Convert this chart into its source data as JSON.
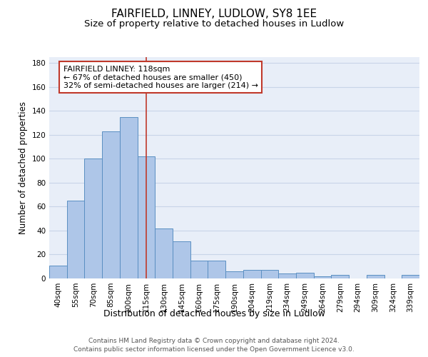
{
  "title": "FAIRFIELD, LINNEY, LUDLOW, SY8 1EE",
  "subtitle": "Size of property relative to detached houses in Ludlow",
  "xlabel": "Distribution of detached houses by size in Ludlow",
  "ylabel": "Number of detached properties",
  "categories": [
    "40sqm",
    "55sqm",
    "70sqm",
    "85sqm",
    "100sqm",
    "115sqm",
    "130sqm",
    "145sqm",
    "160sqm",
    "175sqm",
    "190sqm",
    "204sqm",
    "219sqm",
    "234sqm",
    "249sqm",
    "264sqm",
    "279sqm",
    "294sqm",
    "309sqm",
    "324sqm",
    "339sqm"
  ],
  "values": [
    11,
    65,
    100,
    123,
    135,
    102,
    42,
    31,
    15,
    15,
    6,
    7,
    7,
    4,
    5,
    2,
    3,
    0,
    3,
    0,
    3
  ],
  "bar_color": "#aec6e8",
  "bar_edge_color": "#5a8fc2",
  "vline_x_index": 5,
  "vline_color": "#c0392b",
  "annotation_line1": "FAIRFIELD LINNEY: 118sqm",
  "annotation_line2": "← 67% of detached houses are smaller (450)",
  "annotation_line3": "32% of semi-detached houses are larger (214) →",
  "annotation_box_color": "#c0392b",
  "annotation_box_fill": "#ffffff",
  "background_color": "#ffffff",
  "plot_bg_color": "#e8eef8",
  "grid_color": "#c8d4e8",
  "ylim": [
    0,
    185
  ],
  "yticks": [
    0,
    20,
    40,
    60,
    80,
    100,
    120,
    140,
    160,
    180
  ],
  "title_fontsize": 11,
  "subtitle_fontsize": 9.5,
  "xlabel_fontsize": 9,
  "ylabel_fontsize": 8.5,
  "tick_fontsize": 7.5,
  "annotation_fontsize": 8,
  "footer_fontsize": 6.5,
  "footer_text1": "Contains HM Land Registry data © Crown copyright and database right 2024.",
  "footer_text2": "Contains public sector information licensed under the Open Government Licence v3.0."
}
